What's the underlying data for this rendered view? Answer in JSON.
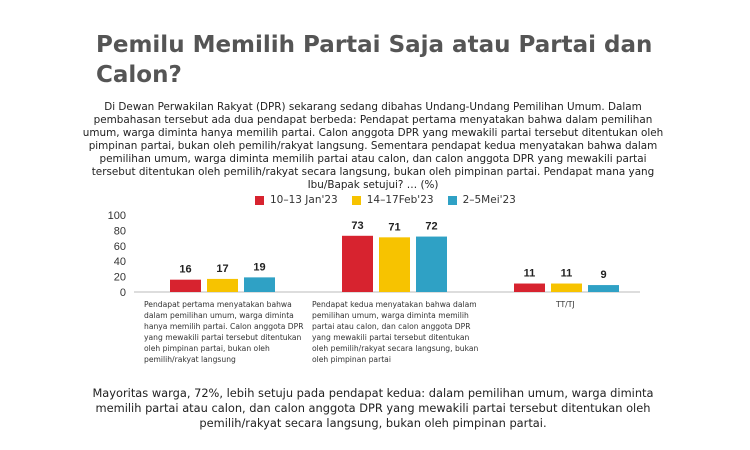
{
  "page": {
    "title": "Pemilu Memilih Partai Saja atau Partai dan Calon?",
    "intro": "Di Dewan Perwakilan Rakyat (DPR) sekarang sedang dibahas Undang-Undang Pemilihan Umum. Dalam pembahasan tersebut ada dua pendapat berbeda: Pendapat pertama menyatakan bahwa dalam pemilihan umum, warga diminta hanya memilih partai. Calon anggota DPR yang mewakili partai tersebut ditentukan oleh pimpinan partai, bukan oleh pemilih/rakyat langsung. Sementara pendapat kedua menyatakan bahwa dalam pemilihan umum, warga diminta memilih partai atau calon, dan calon anggota DPR yang mewakili partai tersebut ditentukan oleh pemilih/rakyat secara langsung, bukan oleh pimpinan partai. Pendapat mana yang Ibu/Bapak setujui? … (%)",
    "summary": "Mayoritas warga, 72%, lebih setuju pada pendapat kedua: dalam pemilihan umum, warga diminta memilih partai atau calon, dan calon anggota DPR yang mewakili partai tersebut ditentukan oleh pemilih/rakyat secara langsung, bukan oleh pimpinan partai."
  },
  "chart_data": {
    "type": "bar",
    "categories": [
      "Pendapat pertama menyatakan bahwa dalam pemilihan umum, warga diminta hanya memilih partai. Calon anggota DPR yang mewakili partai tersebut ditentukan oleh pimpinan partai, bukan oleh pemilih/rakyat langsung",
      "Pendapat kedua menyatakan bahwa dalam pemilihan umum, warga diminta memilih partai atau calon, dan calon anggota DPR yang mewakili partai tersebut ditentukan oleh pemilih/rakyat secara langsung, bukan oleh pimpinan partai",
      "TT/TJ"
    ],
    "series": [
      {
        "name": "10–13 Jan'23",
        "color": "#d7232f",
        "values": [
          16,
          73,
          11
        ]
      },
      {
        "name": "14–17Feb'23",
        "color": "#f7c300",
        "values": [
          17,
          71,
          11
        ]
      },
      {
        "name": "2–5Mei'23",
        "color": "#2fa1c5",
        "values": [
          19,
          72,
          9
        ]
      }
    ],
    "y_ticks": [
      "0",
      "20",
      "40",
      "60",
      "80",
      "100"
    ],
    "ylim": [
      0,
      100
    ],
    "legend_position": "top",
    "grid": false
  }
}
